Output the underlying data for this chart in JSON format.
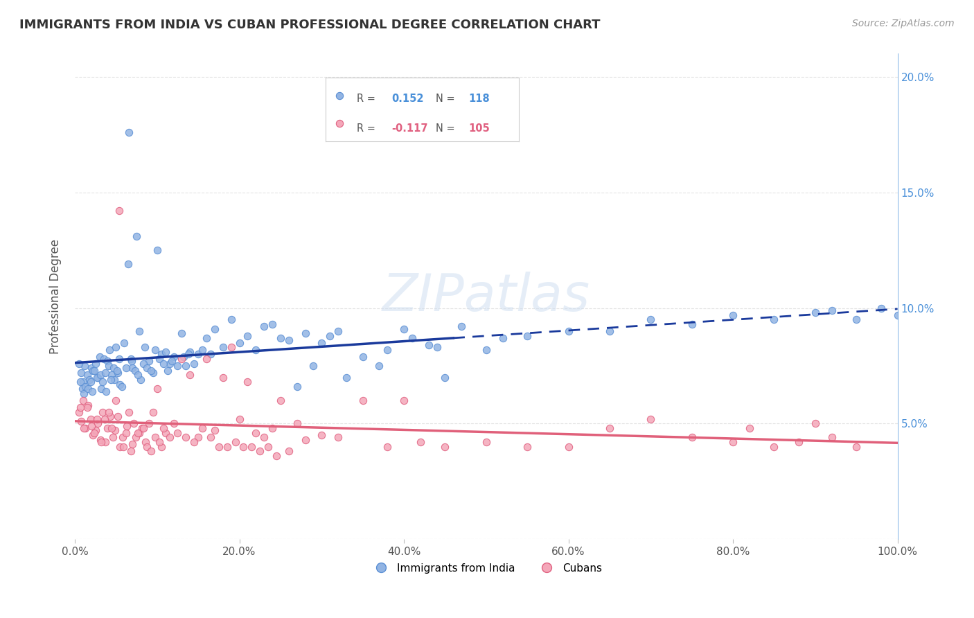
{
  "title": "IMMIGRANTS FROM INDIA VS CUBAN PROFESSIONAL DEGREE CORRELATION CHART",
  "source_text": "Source: ZipAtlas.com",
  "ylabel": "Professional Degree",
  "xlim": [
    0.0,
    1.0
  ],
  "ylim": [
    0.0,
    0.21
  ],
  "xtick_labels": [
    "0.0%",
    "20.0%",
    "40.0%",
    "60.0%",
    "80.0%",
    "100.0%"
  ],
  "xtick_positions": [
    0.0,
    0.2,
    0.4,
    0.6,
    0.8,
    1.0
  ],
  "right_ytick_labels": [
    "5.0%",
    "10.0%",
    "15.0%",
    "20.0%"
  ],
  "right_ytick_positions": [
    0.05,
    0.1,
    0.15,
    0.2
  ],
  "india_color": "#92b4e3",
  "india_edge_color": "#5a8fd4",
  "cuba_color": "#f4a7b9",
  "cuba_edge_color": "#e06080",
  "india_line_color": "#1a3a9c",
  "cuba_line_color": "#e0607a",
  "india_R": 0.152,
  "india_N": 118,
  "cuba_R": -0.117,
  "cuba_N": 105,
  "legend_india_label": "Immigrants from India",
  "legend_cuba_label": "Cubans",
  "right_axis_color": "#4a90d9",
  "india_scatter_x": [
    0.008,
    0.01,
    0.012,
    0.015,
    0.018,
    0.02,
    0.022,
    0.025,
    0.028,
    0.03,
    0.032,
    0.035,
    0.038,
    0.04,
    0.042,
    0.045,
    0.048,
    0.05,
    0.052,
    0.055,
    0.06,
    0.065,
    0.068,
    0.07,
    0.075,
    0.078,
    0.08,
    0.085,
    0.09,
    0.095,
    0.1,
    0.105,
    0.11,
    0.115,
    0.12,
    0.13,
    0.135,
    0.14,
    0.15,
    0.16,
    0.17,
    0.18,
    0.19,
    0.2,
    0.21,
    0.22,
    0.23,
    0.24,
    0.25,
    0.26,
    0.27,
    0.28,
    0.29,
    0.3,
    0.31,
    0.32,
    0.33,
    0.35,
    0.37,
    0.38,
    0.4,
    0.41,
    0.43,
    0.44,
    0.45,
    0.47,
    0.5,
    0.52,
    0.55,
    0.6,
    0.65,
    0.7,
    0.75,
    0.8,
    0.85,
    0.9,
    0.92,
    0.95,
    0.98,
    1.0,
    0.005,
    0.007,
    0.009,
    0.011,
    0.013,
    0.016,
    0.019,
    0.021,
    0.024,
    0.027,
    0.031,
    0.034,
    0.037,
    0.041,
    0.044,
    0.047,
    0.051,
    0.054,
    0.057,
    0.062,
    0.066,
    0.069,
    0.073,
    0.077,
    0.083,
    0.088,
    0.093,
    0.098,
    0.103,
    0.108,
    0.113,
    0.118,
    0.125,
    0.132,
    0.138,
    0.145,
    0.155,
    0.165
  ],
  "india_scatter_y": [
    0.072,
    0.068,
    0.075,
    0.071,
    0.069,
    0.074,
    0.073,
    0.076,
    0.07,
    0.079,
    0.065,
    0.078,
    0.064,
    0.077,
    0.082,
    0.071,
    0.069,
    0.083,
    0.072,
    0.067,
    0.085,
    0.119,
    0.078,
    0.074,
    0.131,
    0.09,
    0.069,
    0.083,
    0.077,
    0.072,
    0.125,
    0.08,
    0.081,
    0.076,
    0.079,
    0.089,
    0.075,
    0.081,
    0.08,
    0.087,
    0.091,
    0.083,
    0.095,
    0.085,
    0.088,
    0.082,
    0.092,
    0.093,
    0.087,
    0.086,
    0.066,
    0.089,
    0.075,
    0.085,
    0.088,
    0.09,
    0.07,
    0.079,
    0.075,
    0.082,
    0.091,
    0.087,
    0.084,
    0.083,
    0.07,
    0.092,
    0.082,
    0.087,
    0.088,
    0.09,
    0.09,
    0.095,
    0.093,
    0.097,
    0.095,
    0.098,
    0.099,
    0.095,
    0.1,
    0.097,
    0.076,
    0.068,
    0.065,
    0.063,
    0.066,
    0.065,
    0.068,
    0.064,
    0.073,
    0.07,
    0.071,
    0.068,
    0.072,
    0.075,
    0.069,
    0.074,
    0.073,
    0.078,
    0.066,
    0.074,
    0.176,
    0.077,
    0.073,
    0.071,
    0.076,
    0.074,
    0.073,
    0.082,
    0.078,
    0.076,
    0.073,
    0.077,
    0.075,
    0.079,
    0.08,
    0.076,
    0.082,
    0.08
  ],
  "cuba_scatter_x": [
    0.005,
    0.008,
    0.01,
    0.013,
    0.016,
    0.019,
    0.022,
    0.025,
    0.028,
    0.031,
    0.034,
    0.037,
    0.04,
    0.043,
    0.046,
    0.049,
    0.052,
    0.055,
    0.058,
    0.062,
    0.066,
    0.07,
    0.074,
    0.078,
    0.082,
    0.086,
    0.09,
    0.095,
    0.1,
    0.105,
    0.11,
    0.115,
    0.12,
    0.13,
    0.14,
    0.15,
    0.16,
    0.17,
    0.18,
    0.19,
    0.2,
    0.21,
    0.22,
    0.23,
    0.24,
    0.25,
    0.26,
    0.27,
    0.28,
    0.3,
    0.32,
    0.35,
    0.38,
    0.4,
    0.42,
    0.45,
    0.5,
    0.55,
    0.6,
    0.65,
    0.7,
    0.75,
    0.8,
    0.82,
    0.85,
    0.88,
    0.9,
    0.92,
    0.95,
    0.007,
    0.011,
    0.015,
    0.02,
    0.024,
    0.027,
    0.032,
    0.036,
    0.041,
    0.045,
    0.05,
    0.054,
    0.059,
    0.063,
    0.068,
    0.072,
    0.077,
    0.083,
    0.088,
    0.093,
    0.098,
    0.103,
    0.108,
    0.125,
    0.135,
    0.145,
    0.155,
    0.165,
    0.175,
    0.185,
    0.195,
    0.205,
    0.215,
    0.225,
    0.235,
    0.245
  ],
  "cuba_scatter_y": [
    0.055,
    0.051,
    0.06,
    0.048,
    0.058,
    0.052,
    0.045,
    0.047,
    0.05,
    0.043,
    0.055,
    0.042,
    0.048,
    0.053,
    0.044,
    0.047,
    0.053,
    0.04,
    0.044,
    0.046,
    0.055,
    0.041,
    0.044,
    0.046,
    0.048,
    0.042,
    0.05,
    0.055,
    0.065,
    0.04,
    0.046,
    0.044,
    0.05,
    0.078,
    0.071,
    0.044,
    0.078,
    0.047,
    0.07,
    0.083,
    0.052,
    0.068,
    0.046,
    0.044,
    0.048,
    0.06,
    0.038,
    0.05,
    0.043,
    0.045,
    0.044,
    0.06,
    0.04,
    0.06,
    0.042,
    0.04,
    0.042,
    0.04,
    0.04,
    0.048,
    0.052,
    0.044,
    0.042,
    0.048,
    0.04,
    0.042,
    0.05,
    0.044,
    0.04,
    0.057,
    0.048,
    0.057,
    0.049,
    0.046,
    0.052,
    0.042,
    0.052,
    0.055,
    0.048,
    0.06,
    0.142,
    0.04,
    0.049,
    0.038,
    0.05,
    0.046,
    0.048,
    0.04,
    0.038,
    0.044,
    0.042,
    0.048,
    0.046,
    0.044,
    0.042,
    0.048,
    0.044,
    0.04,
    0.04,
    0.042,
    0.04,
    0.04,
    0.038,
    0.04,
    0.036
  ],
  "marker_size": 55,
  "grid_color": "#e0e0e0",
  "background_color": "#ffffff",
  "title_color": "#333333"
}
